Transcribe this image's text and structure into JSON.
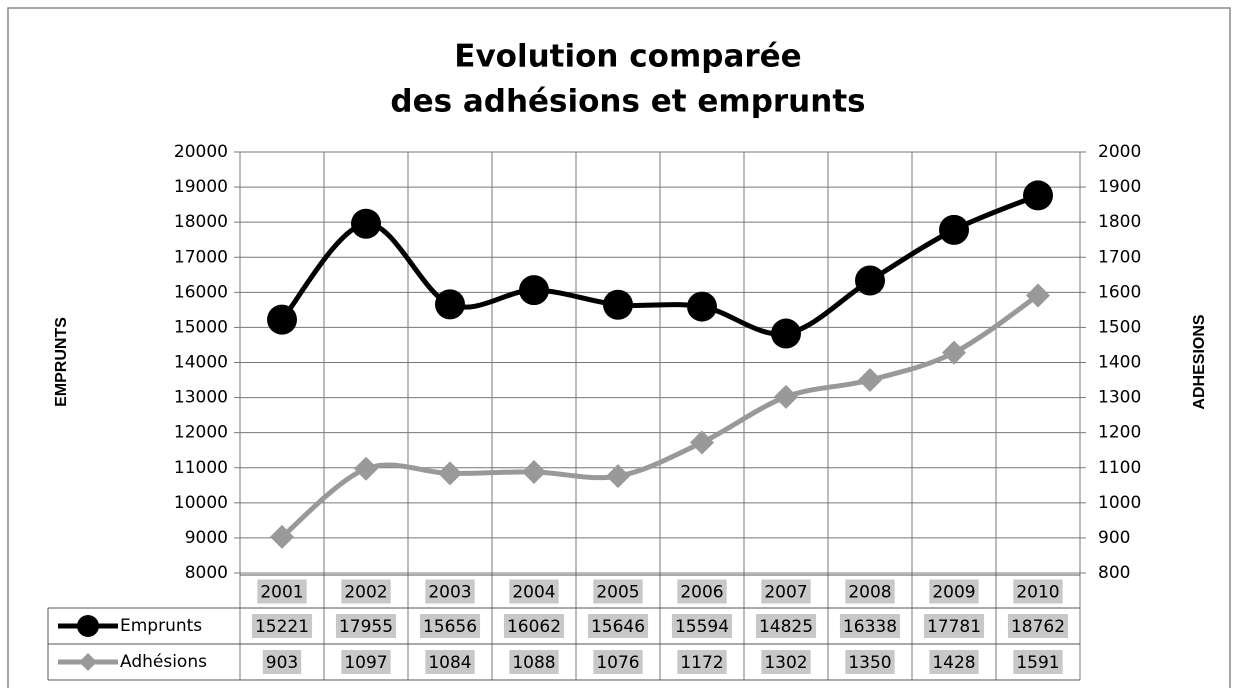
{
  "chart_data": {
    "type": "line",
    "title": [
      "Evolution comparée",
      "des adhésions et emprunts"
    ],
    "y_label": "EMPRUNTS",
    "y2_label": "ADHESIONS",
    "categories": [
      "2001",
      "2002",
      "2003",
      "2004",
      "2005",
      "2006",
      "2007",
      "2008",
      "2009",
      "2010"
    ],
    "series": [
      {
        "name": "Emprunts",
        "color": "#000000",
        "marker": "circle",
        "values": [
          15221,
          17955,
          15656,
          16062,
          15646,
          15594,
          14825,
          16338,
          17781,
          18762
        ]
      },
      {
        "name": "Adhésions",
        "color": "#999999",
        "marker": "diamond",
        "axis": "y2",
        "values": [
          903,
          1097,
          1084,
          1088,
          1076,
          1172,
          1302,
          1350,
          1428,
          1591
        ]
      }
    ],
    "ylim": [
      8000,
      20000
    ],
    "yticks": [
      8000,
      9000,
      10000,
      11000,
      12000,
      13000,
      14000,
      15000,
      16000,
      17000,
      18000,
      19000,
      20000
    ],
    "y2lim": [
      800,
      2000
    ],
    "y2ticks": [
      800,
      900,
      1000,
      1100,
      1200,
      1300,
      1400,
      1500,
      1600,
      1700,
      1800,
      1900,
      2000
    ],
    "grid": true,
    "data_table": true
  }
}
